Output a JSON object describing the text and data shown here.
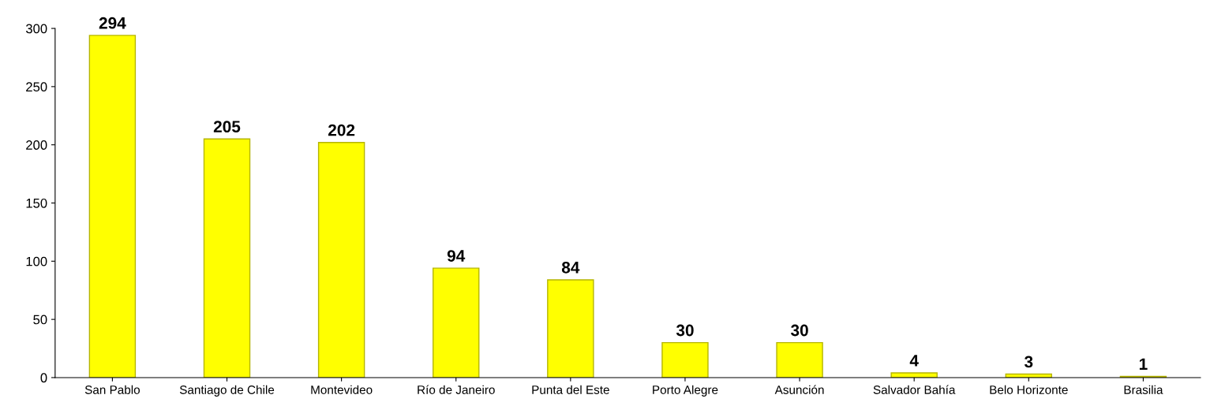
{
  "chart_data": {
    "type": "bar",
    "categories": [
      "San Pablo",
      "Santiago de Chile",
      "Montevideo",
      "Río de Janeiro",
      "Punta del Este",
      "Porto Alegre",
      "Asunción",
      "Salvador Bahía",
      "Belo Horizonte",
      "Brasilia"
    ],
    "values": [
      294,
      205,
      202,
      94,
      84,
      30,
      30,
      4,
      3,
      1
    ],
    "color": "#ffff00",
    "ylim": [
      0,
      300
    ],
    "yticks": [
      0,
      50,
      100,
      150,
      200,
      250,
      300
    ],
    "grid": false,
    "data_labels": true
  }
}
